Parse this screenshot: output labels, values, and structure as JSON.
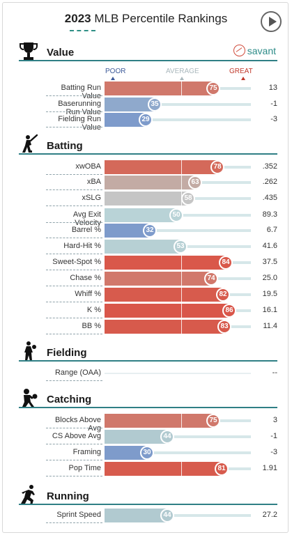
{
  "header": {
    "year": "2023",
    "title": "MLB Percentile Rankings"
  },
  "legend": {
    "poor": "POOR",
    "average": "AVERAGE",
    "great": "GREAT"
  },
  "brand": {
    "name": "savant"
  },
  "colors": {
    "accent": "#2f7f85",
    "poor": "#3d5a99",
    "great": "#c0392b"
  },
  "sections": [
    {
      "title": "Value",
      "icon": "trophy-icon",
      "rows": [
        {
          "label": "Batting Run Value",
          "pct": 75,
          "value": "13",
          "color": "#d0786b"
        },
        {
          "label": "Baserunning Run Value",
          "pct": 35,
          "value": "-1",
          "color": "#8fa9cc"
        },
        {
          "label": "Fielding Run Value",
          "pct": 29,
          "value": "-3",
          "color": "#7e9bcb"
        }
      ]
    },
    {
      "title": "Batting",
      "icon": "batter-icon",
      "rows": [
        {
          "label": "xwOBA",
          "pct": 78,
          "value": ".352",
          "color": "#d4695a"
        },
        {
          "label": "xBA",
          "pct": 63,
          "value": ".262",
          "color": "#c3aba4"
        },
        {
          "label": "xSLG",
          "pct": 58,
          "value": ".435",
          "color": "#c5c5c5"
        },
        {
          "label": "Avg Exit Velocity",
          "pct": 50,
          "value": "89.3",
          "color": "#b9d3d7"
        },
        {
          "label": "Barrel %",
          "pct": 32,
          "value": "6.7",
          "color": "#7e9bcb"
        },
        {
          "label": "Hard-Hit %",
          "pct": 53,
          "value": "41.6",
          "color": "#b7d0d4"
        },
        {
          "label": "Sweet-Spot %",
          "pct": 84,
          "value": "37.5",
          "color": "#d9584a"
        },
        {
          "label": "Chase %",
          "pct": 74,
          "value": "25.0",
          "color": "#d1786b"
        },
        {
          "label": "Whiff %",
          "pct": 82,
          "value": "19.5",
          "color": "#d75b4d"
        },
        {
          "label": "K %",
          "pct": 86,
          "value": "16.1",
          "color": "#d9564a"
        },
        {
          "label": "BB %",
          "pct": 83,
          "value": "11.4",
          "color": "#d75a4c"
        }
      ]
    },
    {
      "title": "Fielding",
      "icon": "fielder-icon",
      "rows": [
        {
          "label": "Range (OAA)",
          "pct": null,
          "value": "--",
          "color": "#e7eff1"
        }
      ]
    },
    {
      "title": "Catching",
      "icon": "catcher-icon",
      "rows": [
        {
          "label": "Blocks Above Avg",
          "pct": 75,
          "value": "3",
          "color": "#d0786b"
        },
        {
          "label": "CS Above Avg",
          "pct": 44,
          "value": "-1",
          "color": "#b1cad0"
        },
        {
          "label": "Framing",
          "pct": 30,
          "value": "-3",
          "color": "#7e9bcb"
        },
        {
          "label": "Pop Time",
          "pct": 81,
          "value": "1.91",
          "color": "#d75b4d"
        }
      ]
    },
    {
      "title": "Running",
      "icon": "runner-icon",
      "rows": [
        {
          "label": "Sprint Speed",
          "pct": 44,
          "value": "27.2",
          "color": "#b1cad0"
        }
      ]
    }
  ]
}
